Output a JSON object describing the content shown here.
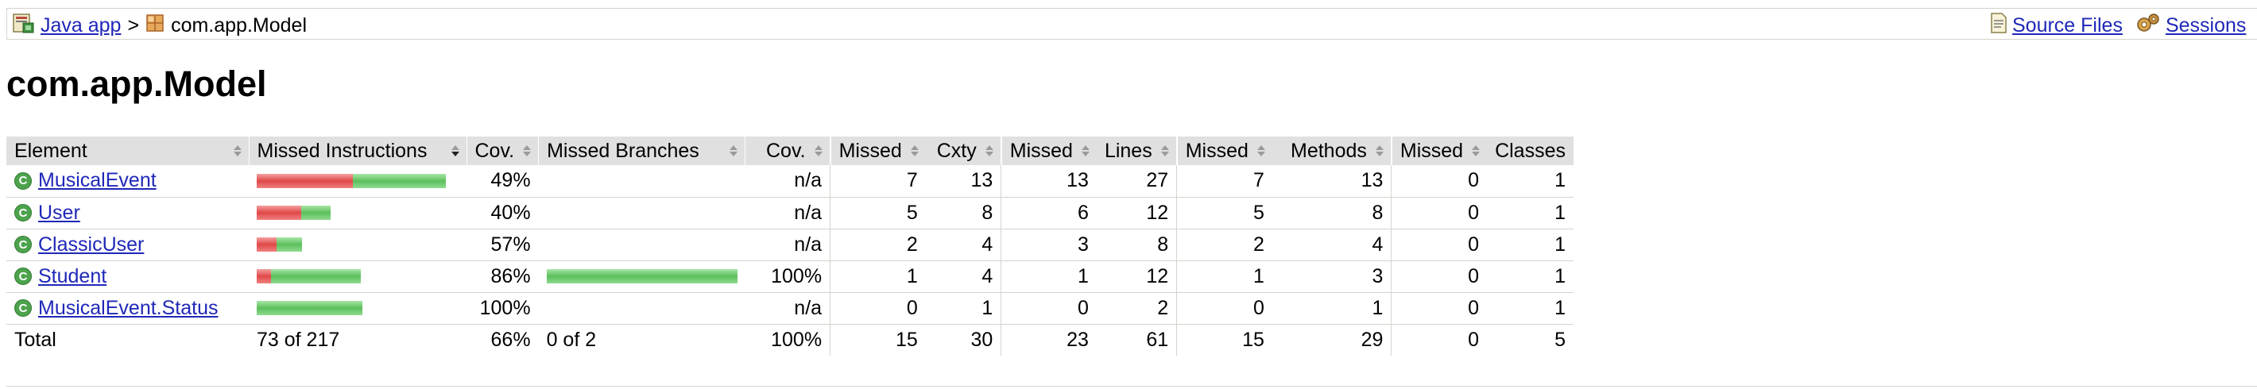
{
  "breadcrumb": {
    "app_link": "Java app",
    "separator": ">",
    "package": "com.app.Model",
    "source_files": "Source Files",
    "sessions": "Sessions"
  },
  "page_title": "com.app.Model",
  "headers": {
    "element": "Element",
    "missed_instructions": "Missed Instructions",
    "cov1": "Cov.",
    "missed_branches": "Missed Branches",
    "cov2": "Cov.",
    "missed_cxty": "Missed",
    "cxty": "Cxty",
    "missed_lines": "Missed",
    "lines": "Lines",
    "missed_methods": "Missed",
    "methods": "Methods",
    "missed_classes": "Missed",
    "classes": "Classes"
  },
  "rows": [
    {
      "name": "MusicalEvent",
      "instr_missed_frac": 0.51,
      "instr_cov": "49%",
      "branch_covered_frac": null,
      "branch_cov": "n/a",
      "missed_cxty": "7",
      "cxty": "13",
      "missed_lines": "13",
      "lines": "27",
      "missed_methods": "7",
      "methods": "13",
      "missed_classes": "0",
      "classes": "1",
      "instr_total_rel": 1.0,
      "branch_total_rel": 0
    },
    {
      "name": "User",
      "instr_missed_frac": 0.6,
      "instr_cov": "40%",
      "branch_covered_frac": null,
      "branch_cov": "n/a",
      "missed_cxty": "5",
      "cxty": "8",
      "missed_lines": "6",
      "lines": "12",
      "missed_methods": "5",
      "methods": "8",
      "missed_classes": "0",
      "classes": "1",
      "instr_total_rel": 0.39,
      "branch_total_rel": 0
    },
    {
      "name": "ClassicUser",
      "instr_missed_frac": 0.43,
      "instr_cov": "57%",
      "branch_covered_frac": null,
      "branch_cov": "n/a",
      "missed_cxty": "2",
      "cxty": "4",
      "missed_lines": "3",
      "lines": "8",
      "missed_methods": "2",
      "methods": "4",
      "missed_classes": "0",
      "classes": "1",
      "instr_total_rel": 0.24,
      "branch_total_rel": 0
    },
    {
      "name": "Student",
      "instr_missed_frac": 0.14,
      "instr_cov": "86%",
      "branch_covered_frac": 1.0,
      "branch_cov": "100%",
      "missed_cxty": "1",
      "cxty": "4",
      "missed_lines": "1",
      "lines": "12",
      "missed_methods": "1",
      "methods": "3",
      "missed_classes": "0",
      "classes": "1",
      "instr_total_rel": 0.55,
      "branch_total_rel": 1.0
    },
    {
      "name": "MusicalEvent.Status",
      "instr_missed_frac": 0.0,
      "instr_cov": "100%",
      "branch_covered_frac": null,
      "branch_cov": "n/a",
      "missed_cxty": "0",
      "cxty": "1",
      "missed_lines": "0",
      "lines": "2",
      "missed_methods": "0",
      "methods": "1",
      "missed_classes": "0",
      "classes": "1",
      "instr_total_rel": 0.56,
      "branch_total_rel": 0
    }
  ],
  "total": {
    "label": "Total",
    "instr": "73 of 217",
    "instr_cov": "66%",
    "branches": "0 of 2",
    "branch_cov": "100%",
    "missed_cxty": "15",
    "cxty": "30",
    "missed_lines": "23",
    "lines": "61",
    "missed_methods": "15",
    "methods": "29",
    "missed_classes": "0",
    "classes": "5"
  },
  "colors": {
    "link": "#1f27b8",
    "header_bg": "#e0e0e0",
    "bar_missed": "#e04848",
    "bar_covered": "#5cbf5c",
    "class_icon": "#4da34d"
  }
}
